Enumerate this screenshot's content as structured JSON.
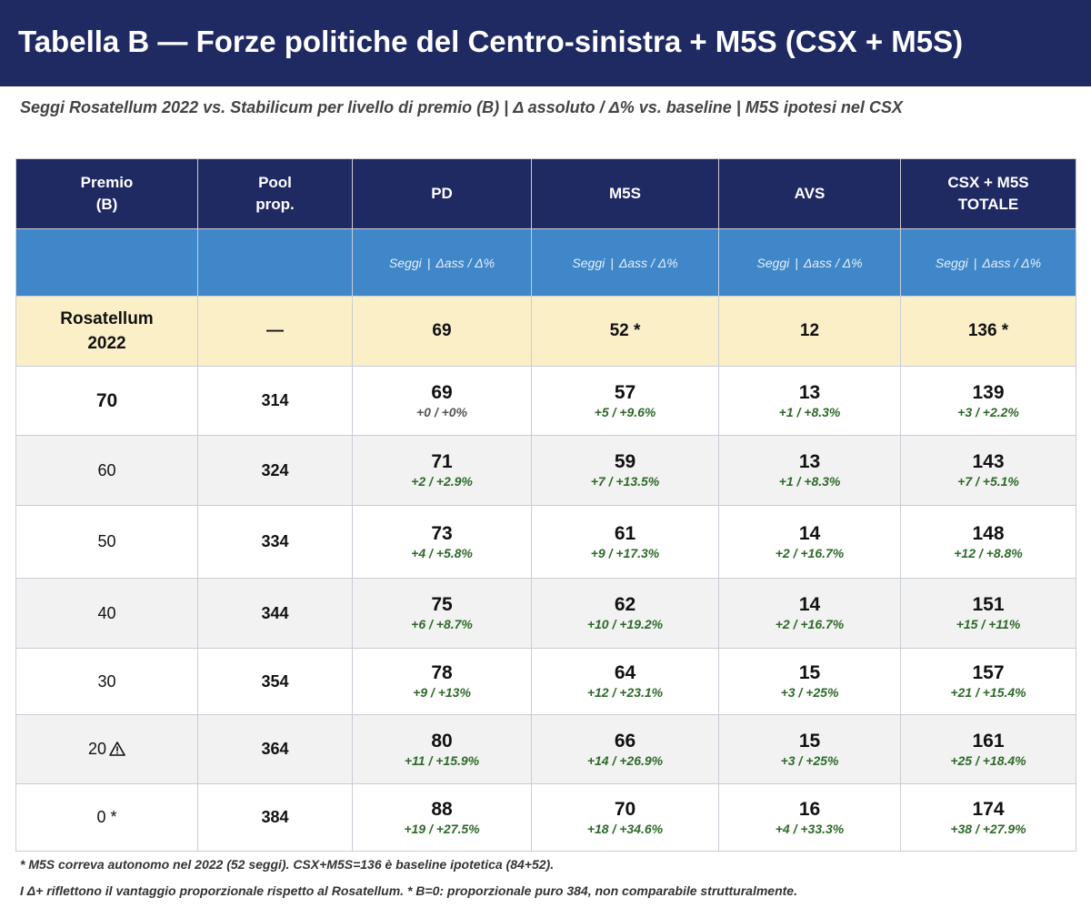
{
  "title": "Tabella B — Forze politiche del Centro-sinistra + M5S (CSX + M5S)",
  "subtitle": "Seggi Rosatellum 2022 vs. Stabilicum per livello di premio (B) | Δ assoluto / Δ% vs. baseline | M5S ipotesi nel CSX",
  "header": {
    "premio_l1": "Premio",
    "premio_l2": "(B)",
    "pool_l1": "Pool",
    "pool_l2": "prop.",
    "pd": "PD",
    "m5s": "M5S",
    "avs": "AVS",
    "tot_l1": "CSX + M5S",
    "tot_l2": "TOTALE",
    "sub_seggi": "Seggi",
    "sub_sep": "|",
    "sub_delta": "Δass / Δ%"
  },
  "baseline": {
    "label_l1": "Rosatellum",
    "label_l2": "2022",
    "pool": "—",
    "pd": "69",
    "m5s": "52 *",
    "avs": "12",
    "tot": "136 *"
  },
  "rows": [
    {
      "premio": "70",
      "pool": "314",
      "pd": "69",
      "pd_d": "+0 / +0%",
      "m5s": "57",
      "m5s_d": "+5 / +9.6%",
      "avs": "13",
      "avs_d": "+1 / +8.3%",
      "tot": "139",
      "tot_d": "+3 / +2.2%"
    },
    {
      "premio": "60",
      "pool": "324",
      "pd": "71",
      "pd_d": "+2 / +2.9%",
      "m5s": "59",
      "m5s_d": "+7 / +13.5%",
      "avs": "13",
      "avs_d": "+1 / +8.3%",
      "tot": "143",
      "tot_d": "+7 / +5.1%"
    },
    {
      "premio": "50",
      "pool": "334",
      "pd": "73",
      "pd_d": "+4 / +5.8%",
      "m5s": "61",
      "m5s_d": "+9 / +17.3%",
      "avs": "14",
      "avs_d": "+2 / +16.7%",
      "tot": "148",
      "tot_d": "+12 / +8.8%"
    },
    {
      "premio": "40",
      "pool": "344",
      "pd": "75",
      "pd_d": "+6 / +8.7%",
      "m5s": "62",
      "m5s_d": "+10 / +19.2%",
      "avs": "14",
      "avs_d": "+2 / +16.7%",
      "tot": "151",
      "tot_d": "+15 / +11%"
    },
    {
      "premio": "30",
      "pool": "354",
      "pd": "78",
      "pd_d": "+9 / +13%",
      "m5s": "64",
      "m5s_d": "+12 / +23.1%",
      "avs": "15",
      "avs_d": "+3 / +25%",
      "tot": "157",
      "tot_d": "+21 / +15.4%"
    },
    {
      "premio": "20",
      "pool": "364",
      "pd": "80",
      "pd_d": "+11 / +15.9%",
      "m5s": "66",
      "m5s_d": "+14 / +26.9%",
      "avs": "15",
      "avs_d": "+3 / +25%",
      "tot": "161",
      "tot_d": "+25 / +18.4%"
    },
    {
      "premio": "0 *",
      "pool": "384",
      "pd": "88",
      "pd_d": "+19 / +27.5%",
      "m5s": "70",
      "m5s_d": "+18 / +34.6%",
      "avs": "16",
      "avs_d": "+4 / +33.3%",
      "tot": "174",
      "tot_d": "+38 / +27.9%"
    }
  ],
  "notes": {
    "n1": "* M5S correva autonomo nel 2022 (52 seggi). CSX+M5S=136 è baseline ipotetica (84+52).",
    "n2": "I Δ+ riflettono il vantaggio proporzionale rispetto al Rosatellum. * B=0: proporzionale puro 384, non comparabile strutturalmente."
  },
  "icons": {
    "warning_row_premio": "20",
    "warning": "warning-triangle-icon"
  },
  "colors": {
    "title_bg": "#1f2a63",
    "subheader_bg": "#3f87c9",
    "baseline_bg": "#fbefc8",
    "delta_positive": "#2e6a2a"
  }
}
